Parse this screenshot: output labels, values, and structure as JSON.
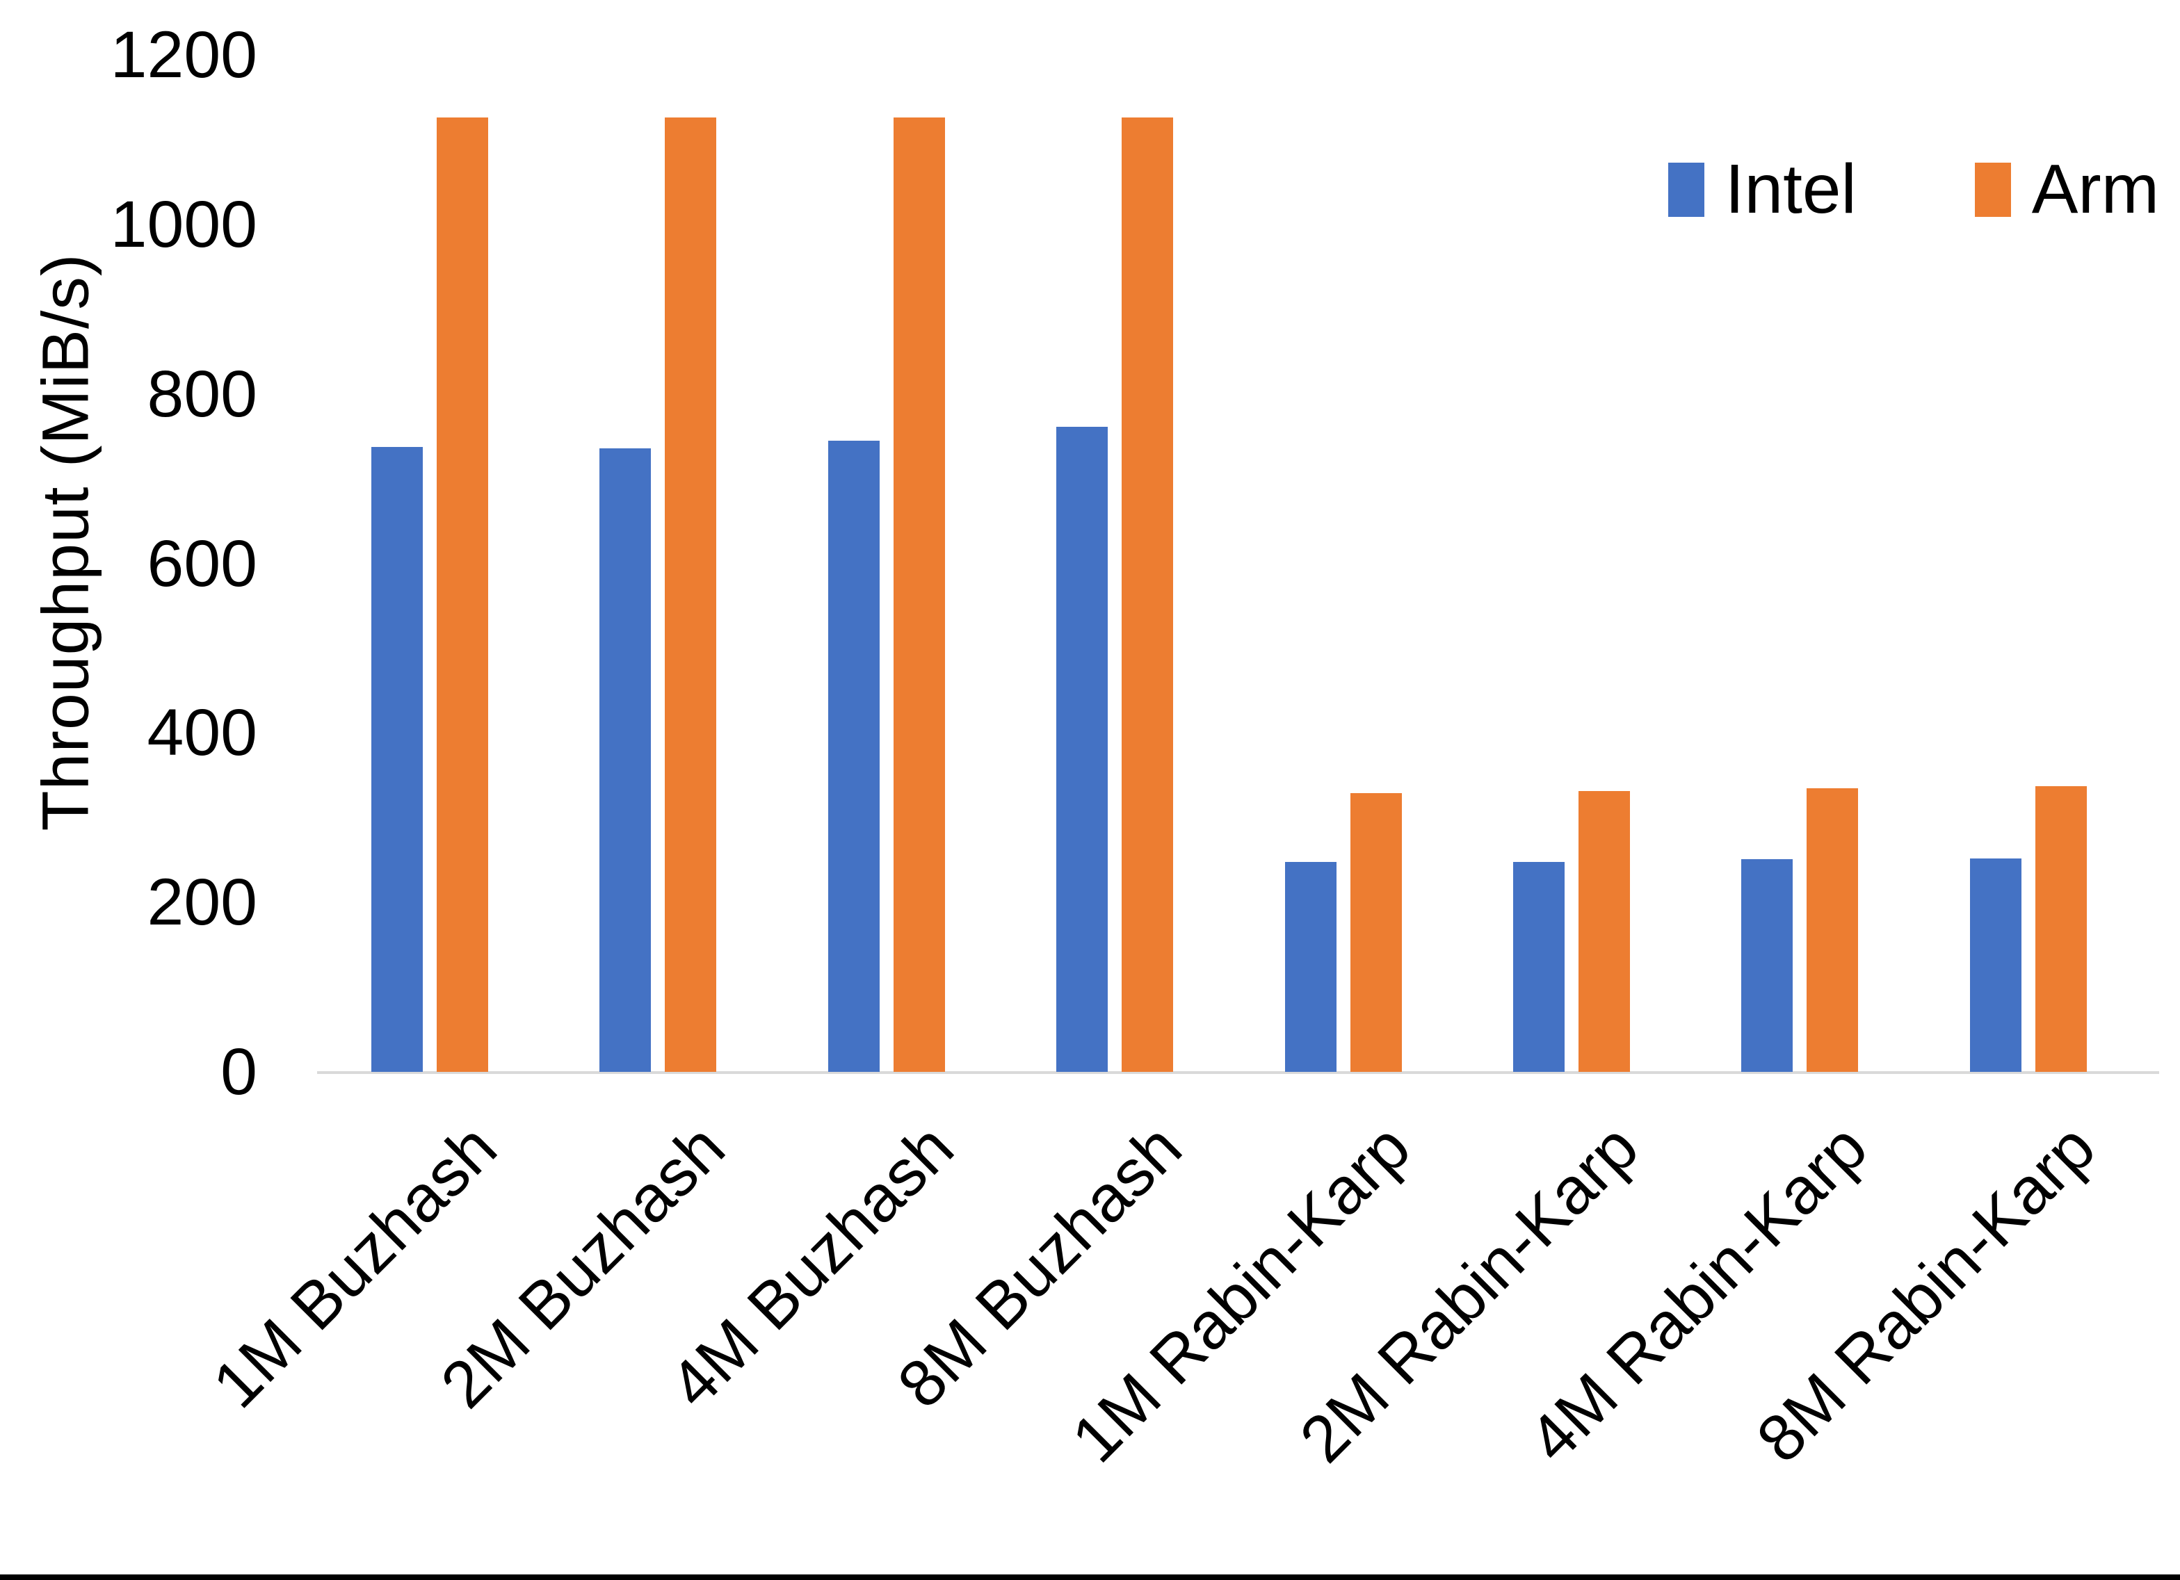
{
  "chart_data": {
    "type": "bar",
    "title": "",
    "xlabel": "",
    "ylabel": "Throughput (MiB/s)",
    "ylim": [
      0,
      1200
    ],
    "yticks": [
      0,
      200,
      400,
      600,
      800,
      1000,
      1200
    ],
    "grid": false,
    "legend_position": "top-right",
    "categories": [
      "1M Buzhash",
      "2M Buzhash",
      "4M Buzhash",
      "8M Buzhash",
      "1M Rabin-Karp",
      "2M Rabin-Karp",
      "4M Rabin-Karp",
      "8M Rabin-Karp"
    ],
    "series": [
      {
        "name": "Intel",
        "color": "#4472C4",
        "values": [
          737,
          736,
          745,
          761,
          248,
          248,
          251,
          252
        ]
      },
      {
        "name": "Arm",
        "color": "#ED7D31",
        "values": [
          1126,
          1126,
          1126,
          1126,
          329,
          331,
          335,
          337
        ]
      }
    ]
  }
}
